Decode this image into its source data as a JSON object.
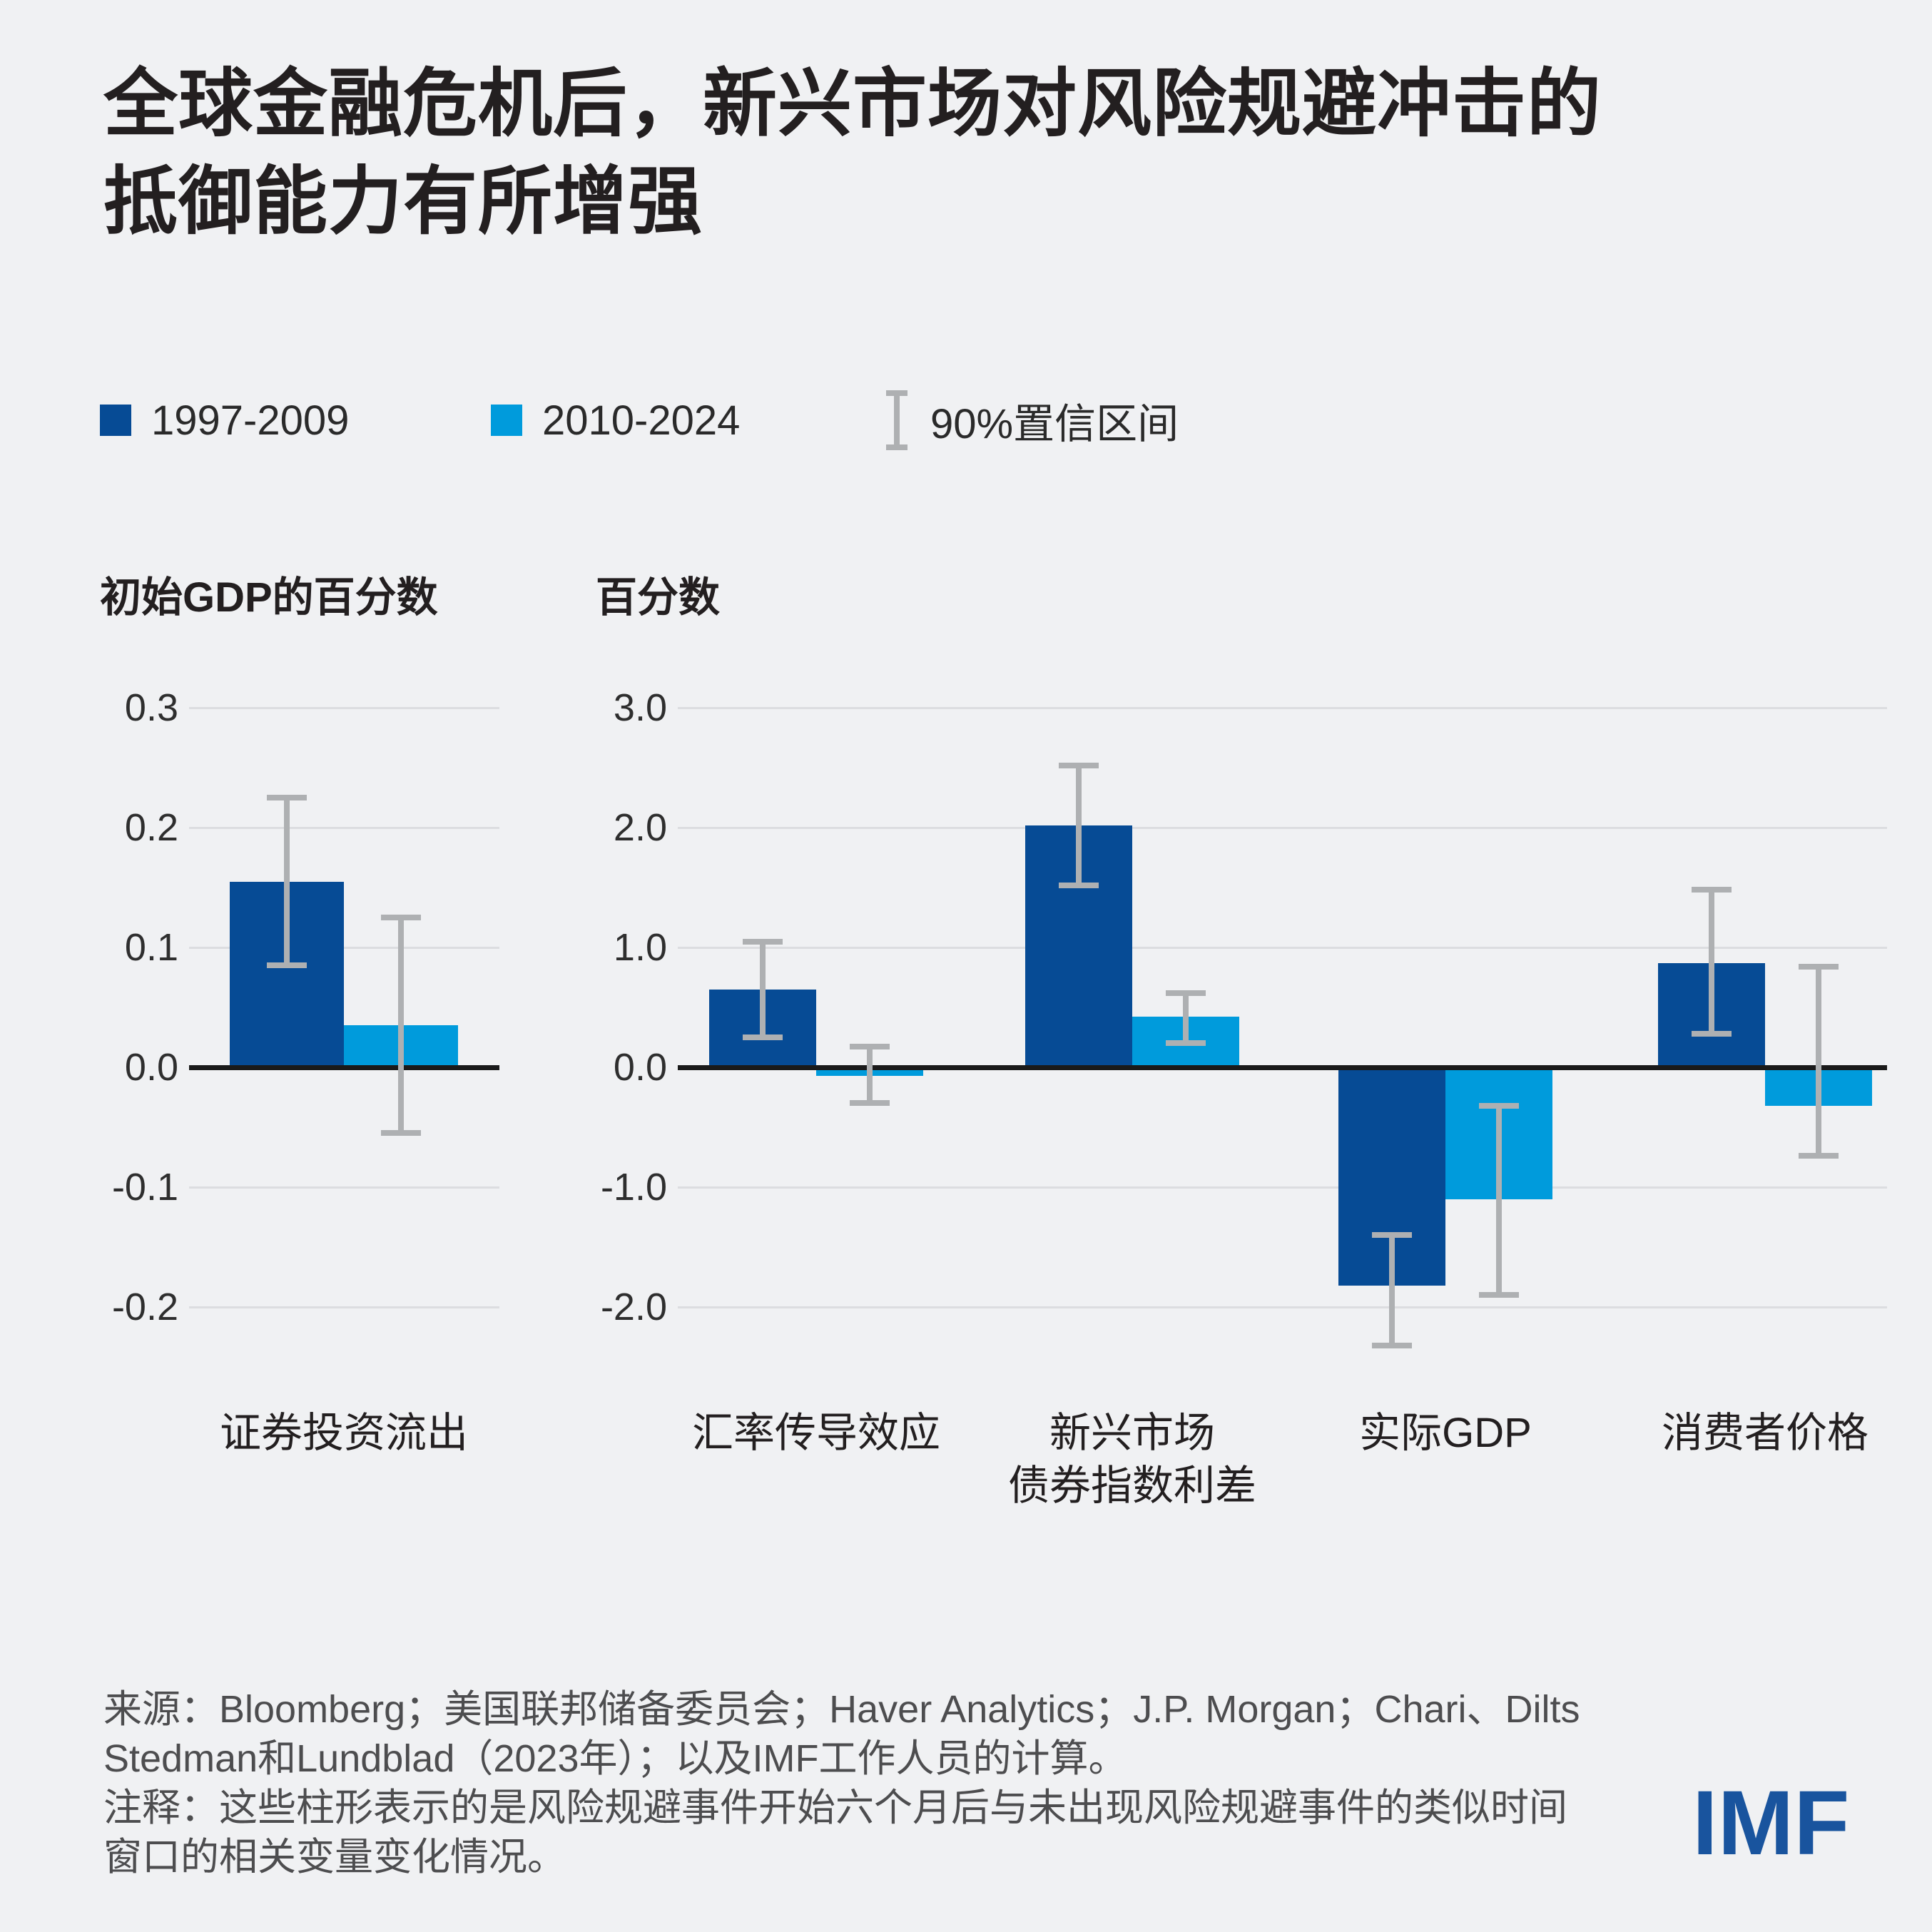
{
  "title": {
    "line1": "全球金融危机后，新兴市场对风险规避冲击的",
    "line2": "抵御能力有所增强"
  },
  "legend": {
    "items": [
      {
        "label": "1997-2009",
        "type": "swatch"
      },
      {
        "label": "2010-2024",
        "type": "swatch"
      },
      {
        "label": "90%置信区间",
        "type": "ci"
      }
    ]
  },
  "chart_data": [
    {
      "type": "bar",
      "unit_label": "初始GDP的百分数",
      "ylim": [
        -0.25,
        0.33
      ],
      "grid": true,
      "ticks": [
        {
          "label": "0.3",
          "value": 0.3
        },
        {
          "label": "0.2",
          "value": 0.2
        },
        {
          "label": "0.1",
          "value": 0.1
        },
        {
          "label": "0.0",
          "value": 0.0
        },
        {
          "label": "-0.1",
          "value": -0.1
        },
        {
          "label": "-0.2",
          "value": -0.2
        }
      ],
      "categories": [
        "证券投资流出"
      ],
      "series": [
        {
          "name": "1997-2009",
          "values": [
            0.155
          ],
          "ci": [
            [
              0.085,
              0.225
            ]
          ]
        },
        {
          "name": "2010-2024",
          "values": [
            0.035
          ],
          "ci": [
            [
              -0.055,
              0.125
            ]
          ]
        }
      ]
    },
    {
      "type": "bar",
      "unit_label": "百分数",
      "ylim": [
        -2.5,
        3.3
      ],
      "grid": true,
      "ticks": [
        {
          "label": "3.0",
          "value": 3.0
        },
        {
          "label": "2.0",
          "value": 2.0
        },
        {
          "label": "1.0",
          "value": 1.0
        },
        {
          "label": "0.0",
          "value": 0.0
        },
        {
          "label": "-1.0",
          "value": -1.0
        },
        {
          "label": "-2.0",
          "value": -2.0
        }
      ],
      "categories": [
        "汇率传导效应",
        "新兴市场\n债券指数利差",
        "实际GDP",
        "消费者价格"
      ],
      "series": [
        {
          "name": "1997-2009",
          "values": [
            0.65,
            2.02,
            -1.82,
            0.87
          ],
          "ci": [
            [
              0.25,
              1.05
            ],
            [
              1.52,
              2.52
            ],
            [
              -2.32,
              -1.4
            ],
            [
              0.28,
              1.48
            ]
          ]
        },
        {
          "name": "2010-2024",
          "values": [
            -0.07,
            0.42,
            -1.1,
            -0.32
          ],
          "ci": [
            [
              -0.3,
              0.17
            ],
            [
              0.2,
              0.62
            ],
            [
              -1.9,
              -0.32
            ],
            [
              -0.74,
              0.84
            ]
          ]
        }
      ]
    }
  ],
  "footer": {
    "lines": [
      "来源：Bloomberg；美国联邦储备委员会；Haver Analytics；J.P. Morgan；Chari、Dilts",
      "Stedman和Lundblad（2023年）；以及IMF工作人员的计算。",
      "注释：这些柱形表示的是风险规避事件开始六个月后与未出现风险规避事件的类似时间",
      "窗口的相关变量变化情况。"
    ]
  },
  "logo": "IMF",
  "colors": {
    "background": "#f0f1f3",
    "series1": "#064b95",
    "series2": "#009bdc",
    "error": "#aeb0b2",
    "grid": "#dcdde0",
    "zero": "#1a1a1a",
    "text": "#231f20",
    "muted": "#4d4d4f",
    "logo": "#19549e"
  }
}
